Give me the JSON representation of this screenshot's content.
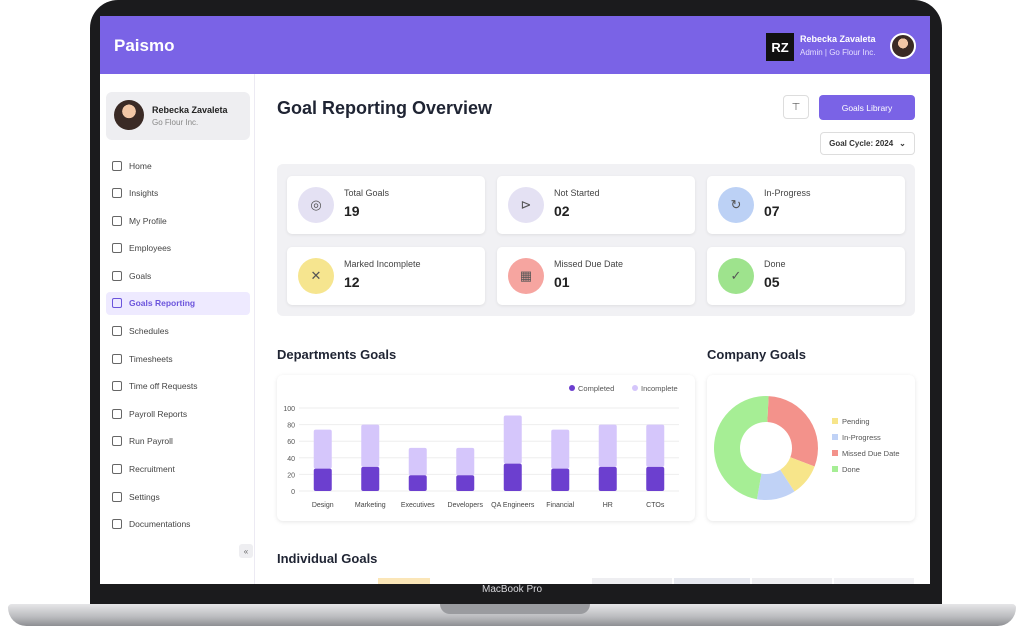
{
  "laptop_label": "MacBook Pro",
  "app": {
    "logo": "Paismo"
  },
  "topbar": {
    "initials": "RZ",
    "user_name": "Rebecka Zavaleta",
    "user_role": "Admin | Go Flour Inc."
  },
  "sidebar": {
    "profile": {
      "name": "Rebecka Zavaleta",
      "company": "Go Flour Inc."
    },
    "items": [
      {
        "label": "Home"
      },
      {
        "label": "Insights"
      },
      {
        "label": "My Profile"
      },
      {
        "label": "Employees"
      },
      {
        "label": "Goals"
      },
      {
        "label": "Goals Reporting",
        "active": true
      },
      {
        "label": "Schedules"
      },
      {
        "label": "Timesheets"
      },
      {
        "label": "Time off Requests"
      },
      {
        "label": "Payroll Reports"
      },
      {
        "label": "Run Payroll"
      },
      {
        "label": "Recruitment"
      },
      {
        "label": "Settings"
      },
      {
        "label": "Documentations"
      }
    ],
    "collapse_glyph": "«"
  },
  "main": {
    "title": "Goal Reporting Overview",
    "library_button": "Goals Library",
    "cycle_select": "Goal Cycle: 2024",
    "stats": [
      {
        "label": "Total Goals",
        "value": "19",
        "icon": "target-icon",
        "color": "#e4e1f3",
        "glyph": "◎"
      },
      {
        "label": "Not Started",
        "value": "02",
        "icon": "skip-icon",
        "color": "#e4e1f3",
        "glyph": "⊳"
      },
      {
        "label": "In-Progress",
        "value": "07",
        "icon": "refresh-icon",
        "color": "#bcd1f5",
        "glyph": "↻"
      },
      {
        "label": "Marked Incomplete",
        "value": "12",
        "icon": "file-x-icon",
        "color": "#f6e58f",
        "glyph": "✕"
      },
      {
        "label": "Missed Due Date",
        "value": "01",
        "icon": "calendar-x-icon",
        "color": "#f6a5a0",
        "glyph": "▦"
      },
      {
        "label": "Done",
        "value": "05",
        "icon": "check-circle-icon",
        "color": "#9ee38d",
        "glyph": "✓"
      }
    ],
    "dept_title": "Departments Goals",
    "company_title": "Company Goals",
    "individual_title": "Individual Goals"
  },
  "chart_data": [
    {
      "type": "bar",
      "title": "Departments Goals",
      "categories": [
        "Design",
        "Marketing",
        "Executives",
        "Developers",
        "QA Engineers",
        "Financial",
        "HR",
        "CTOs"
      ],
      "series": [
        {
          "name": "Completed",
          "values": [
            27,
            29,
            19,
            19,
            33,
            27,
            29,
            29
          ],
          "color": "#6c3fcf"
        },
        {
          "name": "Incomplete",
          "values": [
            47,
            51,
            33,
            33,
            58,
            47,
            51,
            51
          ],
          "color": "#d5c6fb"
        }
      ],
      "ylim": [
        0,
        100
      ],
      "yticks": [
        "100",
        "80",
        "60",
        "40",
        "20",
        "0"
      ],
      "stacked": true,
      "legend": "top-right"
    },
    {
      "type": "pie",
      "title": "Company Goals",
      "donut": true,
      "labels": [
        "Pending",
        "In-Progress",
        "Missed Due Date",
        "Done"
      ],
      "values": [
        10,
        12,
        30,
        48
      ],
      "colors": [
        "#f7e58a",
        "#c0d2f6",
        "#f3928b",
        "#a6ee95"
      ],
      "legend": "right"
    }
  ]
}
